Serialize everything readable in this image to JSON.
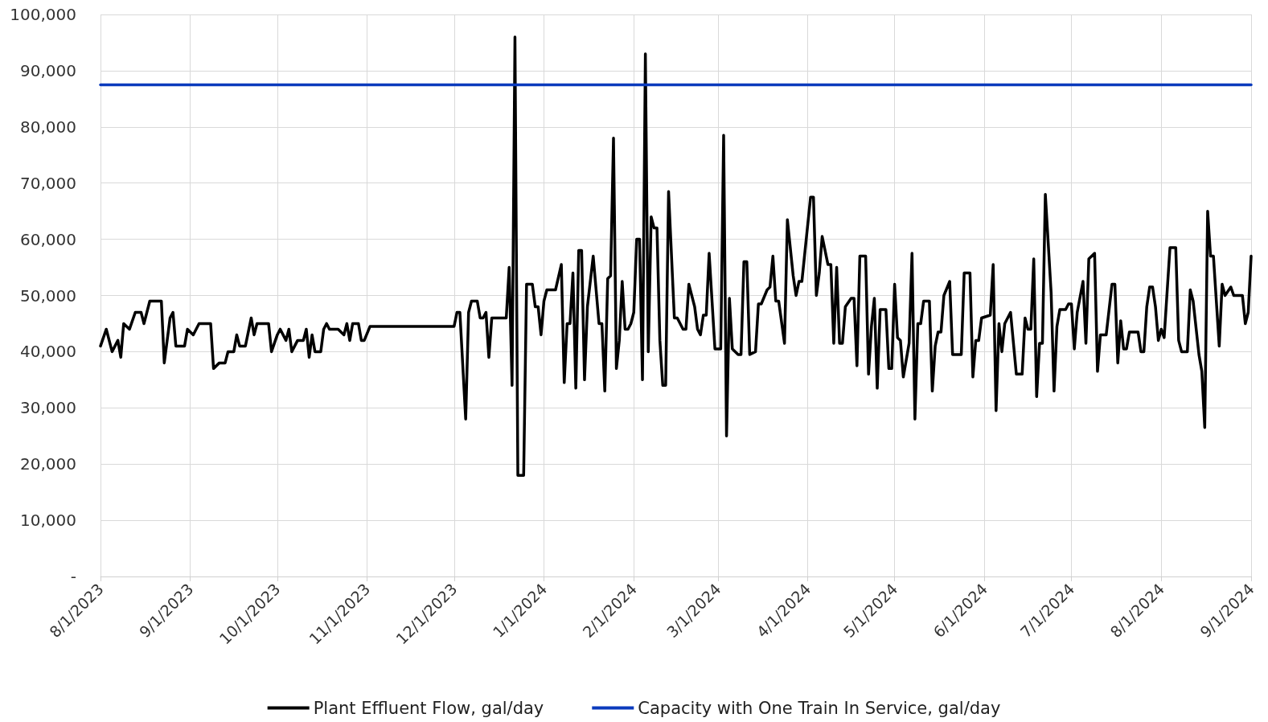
{
  "chart_data": {
    "type": "line",
    "xlim": [
      "2023-08-01",
      "2024-09-01"
    ],
    "xticks": [
      {
        "value": "2023-08-01",
        "label": "8/1/2023"
      },
      {
        "value": "2023-09-01",
        "label": "9/1/2023"
      },
      {
        "value": "2023-10-01",
        "label": "10/1/2023"
      },
      {
        "value": "2023-11-01",
        "label": "11/1/2023"
      },
      {
        "value": "2023-12-01",
        "label": "12/1/2023"
      },
      {
        "value": "2024-01-01",
        "label": "1/1/2024"
      },
      {
        "value": "2024-02-01",
        "label": "2/1/2024"
      },
      {
        "value": "2024-03-01",
        "label": "3/1/2024"
      },
      {
        "value": "2024-04-01",
        "label": "4/1/2024"
      },
      {
        "value": "2024-05-01",
        "label": "5/1/2024"
      },
      {
        "value": "2024-06-01",
        "label": "6/1/2024"
      },
      {
        "value": "2024-07-01",
        "label": "7/1/2024"
      },
      {
        "value": "2024-08-01",
        "label": "8/1/2024"
      },
      {
        "value": "2024-09-01",
        "label": "9/1/2024"
      }
    ],
    "ylim": [
      0,
      100000
    ],
    "yticks": [
      {
        "value": 0,
        "label": "-"
      },
      {
        "value": 10000,
        "label": "10,000"
      },
      {
        "value": 20000,
        "label": "20,000"
      },
      {
        "value": 30000,
        "label": "30,000"
      },
      {
        "value": 40000,
        "label": "40,000"
      },
      {
        "value": 50000,
        "label": "50,000"
      },
      {
        "value": 60000,
        "label": "60,000"
      },
      {
        "value": 70000,
        "label": "70,000"
      },
      {
        "value": 80000,
        "label": "80,000"
      },
      {
        "value": 90000,
        "label": "90,000"
      },
      {
        "value": 100000,
        "label": "100,000"
      }
    ],
    "grid": true,
    "legend": "bottom",
    "marker": "none",
    "line_style": "solid",
    "series": [
      {
        "name": "Plant Effluent Flow, gal/day",
        "color": "#000000",
        "x": [
          "2023-08-01",
          "2023-08-03",
          "2023-08-05",
          "2023-08-07",
          "2023-08-08",
          "2023-08-09",
          "2023-08-11",
          "2023-08-13",
          "2023-08-15",
          "2023-08-16",
          "2023-08-18",
          "2023-08-22",
          "2023-08-23",
          "2023-08-25",
          "2023-08-26",
          "2023-08-27",
          "2023-08-30",
          "2023-08-31",
          "2023-09-02",
          "2023-09-04",
          "2023-09-08",
          "2023-09-09",
          "2023-09-11",
          "2023-09-13",
          "2023-09-14",
          "2023-09-16",
          "2023-09-17",
          "2023-09-18",
          "2023-09-20",
          "2023-09-22",
          "2023-09-23",
          "2023-09-24",
          "2023-09-28",
          "2023-09-29",
          "2023-10-01",
          "2023-10-02",
          "2023-10-04",
          "2023-10-05",
          "2023-10-06",
          "2023-10-08",
          "2023-10-10",
          "2023-10-11",
          "2023-10-12",
          "2023-10-13",
          "2023-10-14",
          "2023-10-16",
          "2023-10-17",
          "2023-10-18",
          "2023-10-19",
          "2023-10-22",
          "2023-10-24",
          "2023-10-25",
          "2023-10-26",
          "2023-10-27",
          "2023-10-29",
          "2023-10-30",
          "2023-10-31",
          "2023-11-02",
          "2023-12-01",
          "2023-12-02",
          "2023-12-03",
          "2023-12-05",
          "2023-12-06",
          "2023-12-07",
          "2023-12-09",
          "2023-12-10",
          "2023-12-11",
          "2023-12-12",
          "2023-12-13",
          "2023-12-14",
          "2023-12-16",
          "2023-12-19",
          "2023-12-20",
          "2023-12-21",
          "2023-12-22",
          "2023-12-23",
          "2023-12-25",
          "2023-12-26",
          "2023-12-28",
          "2023-12-29",
          "2023-12-30",
          "2023-12-31",
          "2024-01-01",
          "2024-01-02",
          "2024-01-04",
          "2024-01-05",
          "2024-01-07",
          "2024-01-08",
          "2024-01-09",
          "2024-01-10",
          "2024-01-11",
          "2024-01-12",
          "2024-01-13",
          "2024-01-14",
          "2024-01-15",
          "2024-01-16",
          "2024-01-18",
          "2024-01-20",
          "2024-01-21",
          "2024-01-22",
          "2024-01-23",
          "2024-01-24",
          "2024-01-25",
          "2024-01-26",
          "2024-01-27",
          "2024-01-28",
          "2024-01-29",
          "2024-01-30",
          "2024-01-31",
          "2024-02-01",
          "2024-02-02",
          "2024-02-03",
          "2024-02-04",
          "2024-02-05",
          "2024-02-06",
          "2024-02-07",
          "2024-02-08",
          "2024-02-09",
          "2024-02-10",
          "2024-02-11",
          "2024-02-12",
          "2024-02-13",
          "2024-02-15",
          "2024-02-16",
          "2024-02-18",
          "2024-02-19",
          "2024-02-20",
          "2024-02-22",
          "2024-02-23",
          "2024-02-24",
          "2024-02-25",
          "2024-02-26",
          "2024-02-27",
          "2024-02-29",
          "2024-03-02",
          "2024-03-03",
          "2024-03-04",
          "2024-03-05",
          "2024-03-06",
          "2024-03-08",
          "2024-03-09",
          "2024-03-10",
          "2024-03-11",
          "2024-03-12",
          "2024-03-14",
          "2024-03-15",
          "2024-03-16",
          "2024-03-18",
          "2024-03-19",
          "2024-03-20",
          "2024-03-21",
          "2024-03-22",
          "2024-03-24",
          "2024-03-25",
          "2024-03-27",
          "2024-03-28",
          "2024-03-29",
          "2024-03-30",
          "2024-04-02",
          "2024-04-03",
          "2024-04-04",
          "2024-04-05",
          "2024-04-06",
          "2024-04-08",
          "2024-04-09",
          "2024-04-10",
          "2024-04-11",
          "2024-04-12",
          "2024-04-13",
          "2024-04-14",
          "2024-04-16",
          "2024-04-17",
          "2024-04-18",
          "2024-04-19",
          "2024-04-21",
          "2024-04-22",
          "2024-04-23",
          "2024-04-24",
          "2024-04-25",
          "2024-04-26",
          "2024-04-28",
          "2024-04-29",
          "2024-04-30",
          "2024-05-01",
          "2024-05-02",
          "2024-05-03",
          "2024-05-04",
          "2024-05-06",
          "2024-05-07",
          "2024-05-08",
          "2024-05-09",
          "2024-05-10",
          "2024-05-11",
          "2024-05-13",
          "2024-05-14",
          "2024-05-15",
          "2024-05-16",
          "2024-05-17",
          "2024-05-18",
          "2024-05-20",
          "2024-05-21",
          "2024-05-24",
          "2024-05-25",
          "2024-05-27",
          "2024-05-28",
          "2024-05-29",
          "2024-05-30",
          "2024-05-31",
          "2024-06-03",
          "2024-06-04",
          "2024-06-05",
          "2024-06-06",
          "2024-06-07",
          "2024-06-08",
          "2024-06-10",
          "2024-06-12",
          "2024-06-14",
          "2024-06-15",
          "2024-06-16",
          "2024-06-17",
          "2024-06-18",
          "2024-06-19",
          "2024-06-20",
          "2024-06-21",
          "2024-06-22",
          "2024-06-24",
          "2024-06-25",
          "2024-06-26",
          "2024-06-27",
          "2024-06-29",
          "2024-06-30",
          "2024-07-01",
          "2024-07-02",
          "2024-07-03",
          "2024-07-05",
          "2024-07-06",
          "2024-07-07",
          "2024-07-09",
          "2024-07-10",
          "2024-07-11",
          "2024-07-13",
          "2024-07-15",
          "2024-07-16",
          "2024-07-17",
          "2024-07-18",
          "2024-07-19",
          "2024-07-20",
          "2024-07-21",
          "2024-07-24",
          "2024-07-25",
          "2024-07-26",
          "2024-07-27",
          "2024-07-28",
          "2024-07-29",
          "2024-07-30",
          "2024-07-31",
          "2024-08-01",
          "2024-08-02",
          "2024-08-04",
          "2024-08-06",
          "2024-08-07",
          "2024-08-08",
          "2024-08-10",
          "2024-08-11",
          "2024-08-12",
          "2024-08-14",
          "2024-08-15",
          "2024-08-16",
          "2024-08-17",
          "2024-08-18",
          "2024-08-19",
          "2024-08-21",
          "2024-08-22",
          "2024-08-23",
          "2024-08-25",
          "2024-08-26",
          "2024-08-29",
          "2024-08-30",
          "2024-08-31",
          "2024-09-01"
        ],
        "values": [
          41000,
          44000,
          40000,
          42000,
          39000,
          45000,
          44000,
          47000,
          47000,
          45000,
          49000,
          49000,
          38000,
          46000,
          47000,
          41000,
          41000,
          44000,
          43000,
          45000,
          45000,
          37000,
          38000,
          38000,
          40000,
          40000,
          43000,
          41000,
          41000,
          46000,
          43000,
          45000,
          45000,
          40000,
          43000,
          44000,
          42000,
          44000,
          40000,
          42000,
          42000,
          44000,
          39000,
          43000,
          40000,
          40000,
          44000,
          45000,
          44000,
          44000,
          43000,
          45000,
          42000,
          45000,
          45000,
          42000,
          42000,
          44500,
          44500,
          47000,
          47000,
          28000,
          47000,
          49000,
          49000,
          46000,
          46000,
          47000,
          39000,
          46000,
          46000,
          46000,
          55000,
          34000,
          96000,
          18000,
          18000,
          52000,
          52000,
          48000,
          48000,
          43000,
          49000,
          51000,
          51000,
          51000,
          55500,
          34500,
          45000,
          45000,
          54000,
          33500,
          58000,
          58000,
          35000,
          48000,
          57000,
          45000,
          45000,
          33000,
          53000,
          53500,
          78000,
          37000,
          42000,
          52500,
          44000,
          44000,
          45000,
          47000,
          60000,
          60000,
          35000,
          93000,
          40000,
          64000,
          62000,
          62000,
          42000,
          34000,
          34000,
          68500,
          46000,
          46000,
          44000,
          44000,
          52000,
          48000,
          44000,
          43000,
          46500,
          46500,
          57500,
          40500,
          40500,
          78500,
          25000,
          49500,
          40500,
          39500,
          39500,
          56000,
          56000,
          39500,
          40000,
          48500,
          48500,
          51000,
          51500,
          57000,
          49000,
          49000,
          41500,
          63500,
          53500,
          50000,
          52500,
          52500,
          67500,
          67500,
          50000,
          54000,
          60500,
          55500,
          55500,
          41500,
          55000,
          41500,
          41500,
          48000,
          49500,
          49500,
          37500,
          57000,
          57000,
          36000,
          44500,
          49500,
          33500,
          47500,
          47500,
          37000,
          37000,
          52000,
          42500,
          42000,
          35500,
          41500,
          57500,
          28000,
          45000,
          45000,
          49000,
          49000,
          33000,
          41000,
          43500,
          43500,
          50000,
          52500,
          39500,
          39500,
          54000,
          54000,
          35500,
          42000,
          42000,
          46000,
          46500,
          55500,
          29500,
          45000,
          40000,
          45000,
          47000,
          36000,
          36000,
          46000,
          44000,
          44000,
          56500,
          32000,
          41500,
          41500,
          68000,
          50500,
          33000,
          44500,
          47500,
          47500,
          48500,
          48500,
          40500,
          47000,
          52500,
          41500,
          56500,
          57500,
          36500,
          43000,
          43000,
          52000,
          52000,
          38000,
          45500,
          40500,
          40500,
          43500,
          43500,
          40000,
          40000,
          48000,
          51500,
          51500,
          48000,
          42000,
          44000,
          42500,
          58500,
          58500,
          42000,
          40000,
          40000,
          51000,
          49000,
          39500,
          36500,
          26500,
          65000,
          57000,
          57000,
          41000,
          52000,
          50000,
          51500,
          50000,
          50000,
          45000,
          47000,
          57000
        ]
      },
      {
        "name": "Capacity with One Train In Service, gal/day",
        "color": "#0b3bbd",
        "x": [
          "2023-08-01",
          "2024-09-01"
        ],
        "values": [
          87500,
          87500
        ]
      }
    ]
  }
}
